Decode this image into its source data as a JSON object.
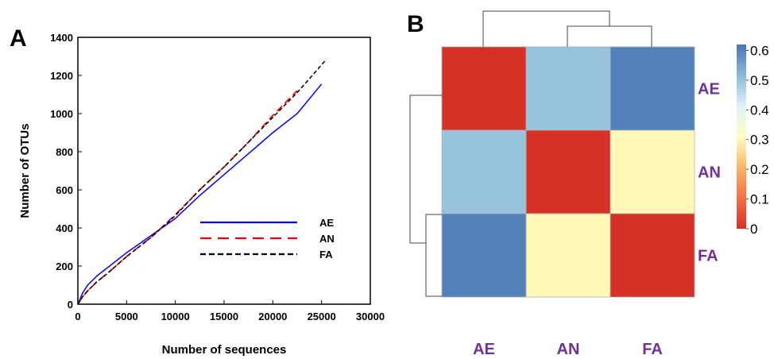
{
  "chart_data": [
    {
      "type": "line",
      "panel_label": "A",
      "title": "",
      "xlabel": "Number of sequences",
      "ylabel": "Number of OTUs",
      "xlim": [
        0,
        30000
      ],
      "ylim": [
        0,
        1400
      ],
      "xticks": [
        "0",
        "5000",
        "10000",
        "15000",
        "20000",
        "25000",
        "30000"
      ],
      "yticks": [
        "0",
        "200",
        "400",
        "600",
        "800",
        "1000",
        "1200",
        "1400"
      ],
      "grid": false,
      "legend_position": "center-right",
      "series": [
        {
          "name": "AE",
          "color": "#0000ff",
          "style": "solid",
          "x": [
            0,
            500,
            1000,
            2000,
            3000,
            5000,
            7500,
            10000,
            12500,
            15000,
            17500,
            20000,
            22500,
            25000
          ],
          "y": [
            0,
            60,
            100,
            150,
            190,
            270,
            360,
            450,
            570,
            680,
            790,
            900,
            1000,
            1155
          ]
        },
        {
          "name": "AN",
          "color": "#ff0000",
          "style": "dashed",
          "x": [
            0,
            500,
            1000,
            2000,
            3000,
            5000,
            7500,
            10000,
            12500,
            15000,
            17500,
            20000,
            22500
          ],
          "y": [
            0,
            40,
            70,
            120,
            160,
            250,
            350,
            470,
            600,
            720,
            850,
            990,
            1120
          ]
        },
        {
          "name": "FA",
          "color": "#000000",
          "style": "dashed",
          "x": [
            0,
            500,
            1000,
            2000,
            3000,
            5000,
            7500,
            10000,
            12500,
            15000,
            17500,
            20000,
            22500,
            25500
          ],
          "y": [
            0,
            40,
            70,
            120,
            160,
            250,
            350,
            465,
            600,
            720,
            850,
            980,
            1110,
            1285
          ]
        }
      ]
    },
    {
      "type": "heatmap",
      "panel_label": "B",
      "title": "",
      "rows": [
        "AE",
        "AN",
        "FA"
      ],
      "columns": [
        "AE",
        "AN",
        "FA"
      ],
      "values": [
        [
          0.0,
          0.5,
          0.6
        ],
        [
          0.5,
          0.0,
          0.3
        ],
        [
          0.6,
          0.3,
          0.0
        ]
      ],
      "colorbar": {
        "ticks": [
          "0",
          "0.1",
          "0.2",
          "0.3",
          "0.4",
          "0.5",
          "0.6"
        ],
        "range": [
          0,
          0.62
        ],
        "colors": [
          "#d73027",
          "#f46d43",
          "#fdae61",
          "#ffffbf",
          "#e0f3f8",
          "#91bfdb",
          "#4575b4"
        ]
      },
      "column_dendrogram": "AE | (AN, FA)",
      "row_dendrogram": "AE | (AN, FA)"
    }
  ]
}
